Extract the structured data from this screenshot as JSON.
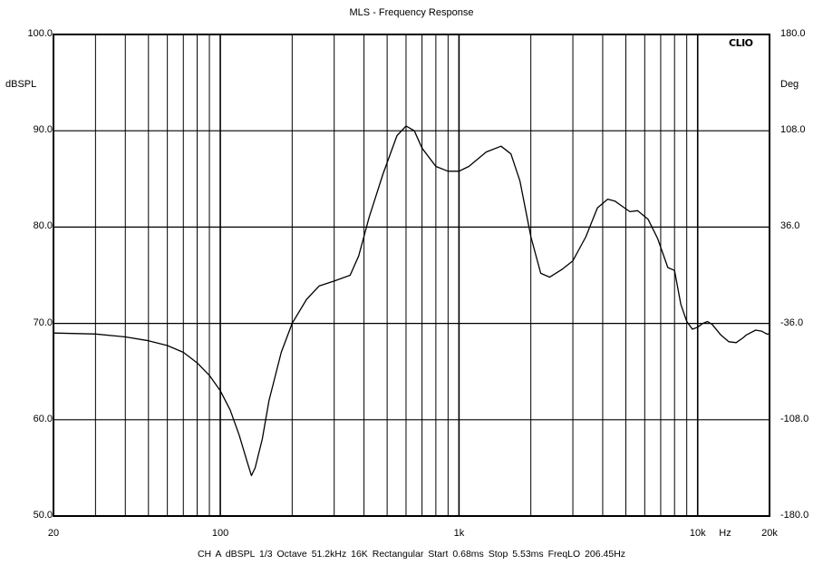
{
  "chart_data": {
    "type": "line",
    "title": "MLS - Frequency Response",
    "brand": "CLIO",
    "ylabel": "dBSPL",
    "y2label": "Deg",
    "xunit": "Hz",
    "xscale": "log",
    "xlim": [
      20,
      20000
    ],
    "ylim": [
      50,
      100
    ],
    "y2lim": [
      -180,
      180
    ],
    "grid": true,
    "y_ticks": [
      "100.0",
      "90.0",
      "80.0",
      "70.0",
      "60.0",
      "50.0"
    ],
    "y_tick_values": [
      100,
      90,
      80,
      70,
      60,
      50
    ],
    "y2_ticks": [
      "180.0",
      "108.0",
      "36.0",
      "-36.0",
      "-108.0",
      "-180.0"
    ],
    "x_ticks": [
      "20",
      "100",
      "1k",
      "10k",
      "20k"
    ],
    "x_tick_values": [
      20,
      100,
      1000,
      10000,
      20000
    ],
    "footer": "CH A   dBSPL   1/3 Octave   51.2kHz   16K   Rectangular   Start 0.68ms   Stop 5.53ms   FreqLO 206.45Hz",
    "series": [
      {
        "x": [
          20,
          30,
          40,
          50,
          60,
          70,
          80,
          90,
          100,
          110,
          120,
          130,
          135,
          140,
          150,
          160,
          180,
          200,
          230,
          260,
          300,
          350,
          380,
          420,
          480,
          550,
          600,
          650,
          700,
          800,
          900,
          1000,
          1100,
          1300,
          1500,
          1650,
          1800,
          2000,
          2200,
          2400,
          2700,
          3000,
          3400,
          3800,
          4200,
          4500,
          4800,
          5200,
          5600,
          6200,
          6800,
          7500,
          8000,
          8500,
          9000,
          9500,
          10000,
          10500,
          11000,
          11500,
          12500,
          13500,
          14500,
          15500,
          16000,
          17500,
          18500,
          19500,
          20000
        ],
        "y": [
          69.0,
          68.9,
          68.6,
          68.2,
          67.7,
          67.0,
          65.9,
          64.6,
          63.0,
          61.0,
          58.4,
          55.5,
          54.2,
          55.0,
          58.0,
          62.0,
          67.0,
          70.0,
          72.5,
          73.9,
          74.4,
          75.0,
          77.0,
          81.0,
          85.5,
          89.5,
          90.5,
          90.0,
          88.2,
          86.3,
          85.8,
          85.8,
          86.3,
          87.8,
          88.4,
          87.6,
          84.8,
          79.0,
          75.2,
          74.8,
          75.6,
          76.5,
          79.0,
          82.0,
          82.9,
          82.7,
          82.2,
          81.6,
          81.7,
          80.8,
          78.8,
          75.8,
          75.5,
          72.0,
          70.2,
          69.4,
          69.6,
          70.0,
          70.2,
          69.9,
          68.8,
          68.1,
          68.0,
          68.5,
          68.8,
          69.3,
          69.2,
          68.9,
          68.9
        ]
      }
    ]
  }
}
